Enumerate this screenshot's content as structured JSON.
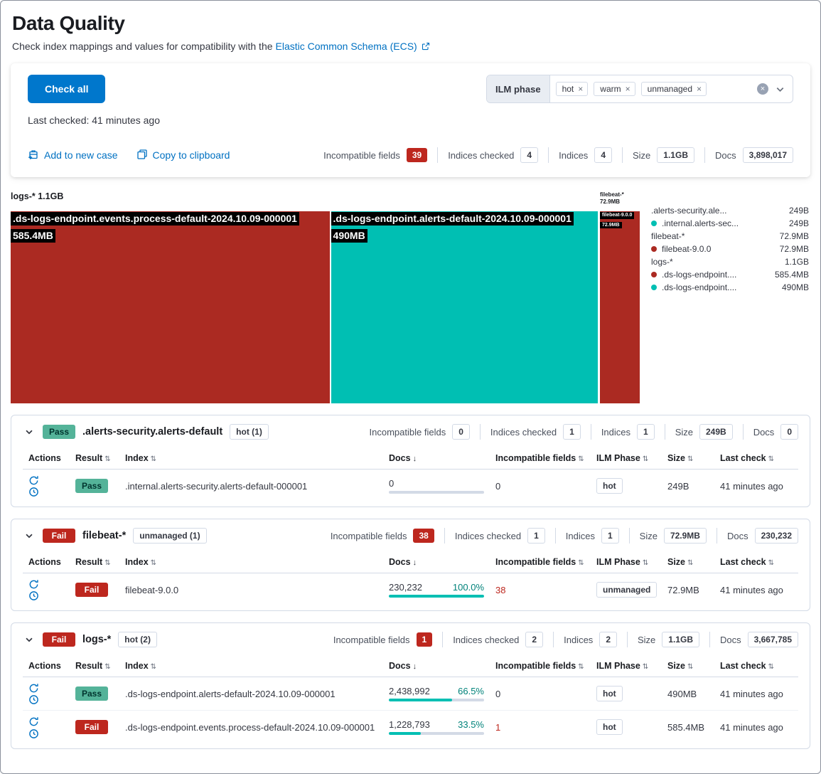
{
  "colors": {
    "primary": "#0071c2",
    "danger": "#bd271e",
    "success": "#54b399",
    "treemap_red": "#ab2a22",
    "treemap_teal": "#00bfb3",
    "bar_fill": "#00bfb3"
  },
  "icons": {
    "close": "×",
    "sort": "⇅",
    "sort_desc": "↓"
  },
  "header": {
    "title": "Data Quality",
    "subtitle": "Check index mappings and values for compatibility with the",
    "subtitle_link": "Elastic Common Schema (ECS)"
  },
  "summary": {
    "check_all": "Check all",
    "last_checked": "Last checked: 41 minutes ago",
    "ilm_filter": {
      "label": "ILM phase",
      "options": [
        "hot",
        "warm",
        "unmanaged"
      ]
    },
    "add_to_case": "Add to new case",
    "copy_to_clipboard": "Copy to clipboard",
    "stats": [
      {
        "label": "Incompatible fields",
        "value": "39"
      },
      {
        "label": "Indices checked",
        "value": "4"
      },
      {
        "label": "Indices",
        "value": "4"
      },
      {
        "label": "Size",
        "value": "1.1GB"
      },
      {
        "label": "Docs",
        "value": "3,898,017"
      }
    ]
  },
  "chart_data": {
    "type": "treemap",
    "unit": "MB",
    "groups": [
      {
        "label": "logs-*",
        "size_label": "1.1GB",
        "size_mb": 1075.4,
        "children": [
          {
            "label": ".ds-logs-endpoint.events.process-default-2024.10.09-000001",
            "size_label": "585.4MB",
            "size_mb": 585.4,
            "color": "#ab2a22"
          },
          {
            "label": ".ds-logs-endpoint.alerts-default-2024.10.09-000001",
            "size_label": "490MB",
            "size_mb": 490,
            "color": "#00bfb3"
          }
        ]
      },
      {
        "label": "filebeat-*",
        "size_label": "72.9MB",
        "size_mb": 72.9,
        "children": [
          {
            "label": "filebeat-9.0.0",
            "size_label": "72.9MB",
            "size_mb": 72.9,
            "color": "#ab2a22"
          }
        ]
      }
    ],
    "legend": [
      {
        "label": ".alerts-security.ale...",
        "value": "249B",
        "dot": ""
      },
      {
        "label": ".internal.alerts-sec...",
        "value": "249B",
        "dot": "#00bfb3"
      },
      {
        "label": "filebeat-*",
        "value": "72.9MB",
        "dot": ""
      },
      {
        "label": "filebeat-9.0.0",
        "value": "72.9MB",
        "dot": "#ab2a22"
      },
      {
        "label": "logs-*",
        "value": "1.1GB",
        "dot": ""
      },
      {
        "label": ".ds-logs-endpoint....",
        "value": "585.4MB",
        "dot": "#ab2a22"
      },
      {
        "label": ".ds-logs-endpoint....",
        "value": "490MB",
        "dot": "#00bfb3"
      }
    ]
  },
  "table_headers": {
    "actions": "Actions",
    "result": "Result",
    "index": "Index",
    "docs": "Docs",
    "incompatible": "Incompatible fields",
    "ilm": "ILM Phase",
    "size": "Size",
    "last_check": "Last check"
  },
  "panels": [
    {
      "result": "Pass",
      "title": ".alerts-security.alerts-default",
      "ilm": "hot (1)",
      "stats": [
        {
          "label": "Incompatible fields",
          "value": "0"
        },
        {
          "label": "Indices checked",
          "value": "1"
        },
        {
          "label": "Indices",
          "value": "1"
        },
        {
          "label": "Size",
          "value": "249B"
        },
        {
          "label": "Docs",
          "value": "0"
        }
      ],
      "rows": [
        {
          "result": "Pass",
          "index": ".internal.alerts-security.alerts-default-000001",
          "docs": "0",
          "pct": "",
          "fill": 0,
          "incompatible": "0",
          "ilm": "hot",
          "size": "249B",
          "last_check": "41 minutes ago"
        }
      ]
    },
    {
      "result": "Fail",
      "title": "filebeat-*",
      "ilm": "unmanaged (1)",
      "stats": [
        {
          "label": "Incompatible fields",
          "value": "38"
        },
        {
          "label": "Indices checked",
          "value": "1"
        },
        {
          "label": "Indices",
          "value": "1"
        },
        {
          "label": "Size",
          "value": "72.9MB"
        },
        {
          "label": "Docs",
          "value": "230,232"
        }
      ],
      "rows": [
        {
          "result": "Fail",
          "index": "filebeat-9.0.0",
          "docs": "230,232",
          "pct": "100.0%",
          "fill": 100,
          "incompatible": "38",
          "ilm": "unmanaged",
          "size": "72.9MB",
          "last_check": "41 minutes ago"
        }
      ]
    },
    {
      "result": "Fail",
      "title": "logs-*",
      "ilm": "hot (2)",
      "stats": [
        {
          "label": "Incompatible fields",
          "value": "1"
        },
        {
          "label": "Indices checked",
          "value": "2"
        },
        {
          "label": "Indices",
          "value": "2"
        },
        {
          "label": "Size",
          "value": "1.1GB"
        },
        {
          "label": "Docs",
          "value": "3,667,785"
        }
      ],
      "rows": [
        {
          "result": "Pass",
          "index": ".ds-logs-endpoint.alerts-default-2024.10.09-000001",
          "docs": "2,438,992",
          "pct": "66.5%",
          "fill": 66.5,
          "incompatible": "0",
          "ilm": "hot",
          "size": "490MB",
          "last_check": "41 minutes ago"
        },
        {
          "result": "Fail",
          "index": ".ds-logs-endpoint.events.process-default-2024.10.09-000001",
          "docs": "1,228,793",
          "pct": "33.5%",
          "fill": 33.5,
          "incompatible": "1",
          "ilm": "hot",
          "size": "585.4MB",
          "last_check": "41 minutes ago"
        }
      ]
    }
  ]
}
